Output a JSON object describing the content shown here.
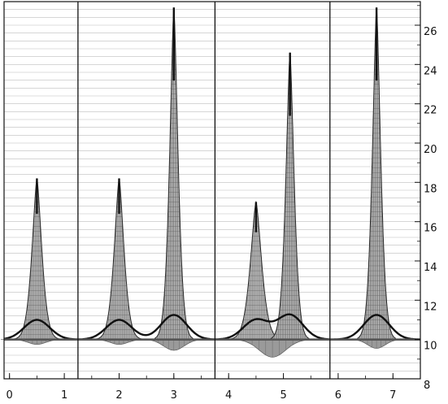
{
  "chart_data": {
    "type": "area",
    "title": "",
    "xlabel": "",
    "ylabel": "",
    "xlim": [
      -0.1,
      7.5
    ],
    "ylim": [
      8,
      27.2
    ],
    "x_ticks": [
      {
        "value": 0,
        "label": "0"
      },
      {
        "value": 1,
        "label": "1"
      },
      {
        "value": 2,
        "label": "2"
      },
      {
        "value": 3,
        "label": "3"
      },
      {
        "value": 4,
        "label": "4"
      },
      {
        "value": 5,
        "label": "5"
      },
      {
        "value": 6,
        "label": "6"
      },
      {
        "value": 7,
        "label": "7"
      }
    ],
    "y_ticks": [
      {
        "value": 8,
        "label": "8"
      },
      {
        "value": 10,
        "label": "10"
      },
      {
        "value": 12,
        "label": "12"
      },
      {
        "value": 14,
        "label": "14"
      },
      {
        "value": 16,
        "label": "16"
      },
      {
        "value": 18,
        "label": "18"
      },
      {
        "value": 20,
        "label": "20"
      },
      {
        "value": 22,
        "label": "22"
      },
      {
        "value": 24,
        "label": "24"
      },
      {
        "value": 26,
        "label": "26"
      }
    ],
    "baseline": 10,
    "panel_dividers_x": [
      1.25,
      3.75,
      5.85
    ],
    "grid": {
      "horizontal": true,
      "minor_step": 0.4
    },
    "peaks": [
      {
        "x": 0.5,
        "height": 18.2,
        "width": 0.13,
        "smooth_height": 11.0
      },
      {
        "x": 2.0,
        "height": 18.2,
        "width": 0.13,
        "smooth_height": 11.0
      },
      {
        "x": 3.0,
        "height": 26.9,
        "width": 0.11,
        "smooth_height": 11.25
      },
      {
        "x": 4.5,
        "height": 17.0,
        "width": 0.15,
        "smooth_height": 11.0
      },
      {
        "x": 5.12,
        "height": 24.6,
        "width": 0.11,
        "smooth_height": 11.25
      },
      {
        "x": 6.7,
        "height": 26.9,
        "width": 0.11,
        "smooth_height": 11.25
      }
    ],
    "troughs": [
      {
        "x": 0.5,
        "depth": 9.75,
        "width": 0.3
      },
      {
        "x": 2.0,
        "depth": 9.75,
        "width": 0.3
      },
      {
        "x": 3.0,
        "depth": 9.45,
        "width": 0.35
      },
      {
        "x": 4.8,
        "depth": 9.1,
        "width": 0.45
      },
      {
        "x": 6.7,
        "depth": 9.55,
        "width": 0.3
      }
    ],
    "colors": {
      "peak_fill": "#b8b8b8",
      "peak_mesh": "#5a5a5a",
      "peak_outline": "#2a2a2a",
      "smooth_curve": "#111111",
      "baseline": "#555555",
      "grid": "#bdbdbd",
      "divider": "#111111"
    }
  }
}
